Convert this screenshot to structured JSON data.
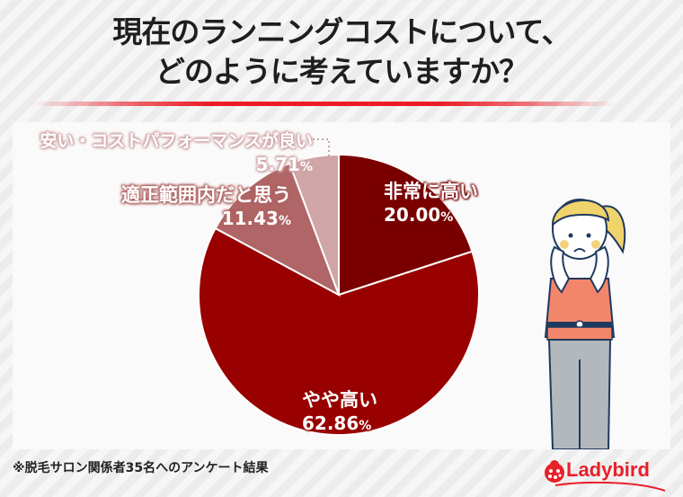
{
  "header": {
    "title_line1": "現在のランニングコストについて、",
    "title_line2": "どのように考えていますか？",
    "rule_color": "#ea1d27"
  },
  "chart_data": {
    "type": "pie",
    "title": "現在のランニングコストについて、どのように考えていますか？",
    "categories": [
      "非常に高い",
      "やや高い",
      "適正範囲内だと思う",
      "安い・コストパフォーマンスが良い"
    ],
    "values": [
      20.0,
      62.86,
      11.43,
      5.71
    ],
    "unit": "%",
    "colors": [
      "#7a0000",
      "#990000",
      "#b06666",
      "#d0a5a8"
    ],
    "start_angle": "12 o'clock",
    "direction": "clockwise",
    "labels": [
      {
        "name": "非常に高い",
        "value": "20.00",
        "unit": "%"
      },
      {
        "name": "やや高い",
        "value": "62.86",
        "unit": "%"
      },
      {
        "name": "適正範囲内だと思う",
        "value": "11.43",
        "unit": "%"
      },
      {
        "name": "安い・コストパフォーマンスが良い",
        "value": "5.71",
        "unit": "%"
      }
    ]
  },
  "footer": {
    "note": "※脱毛サロン関係者35名へのアンケート結果",
    "logo_text": "Ladybird",
    "logo_color": "#e8202a"
  },
  "illustration": {
    "icon": "worried-woman-illustration"
  }
}
